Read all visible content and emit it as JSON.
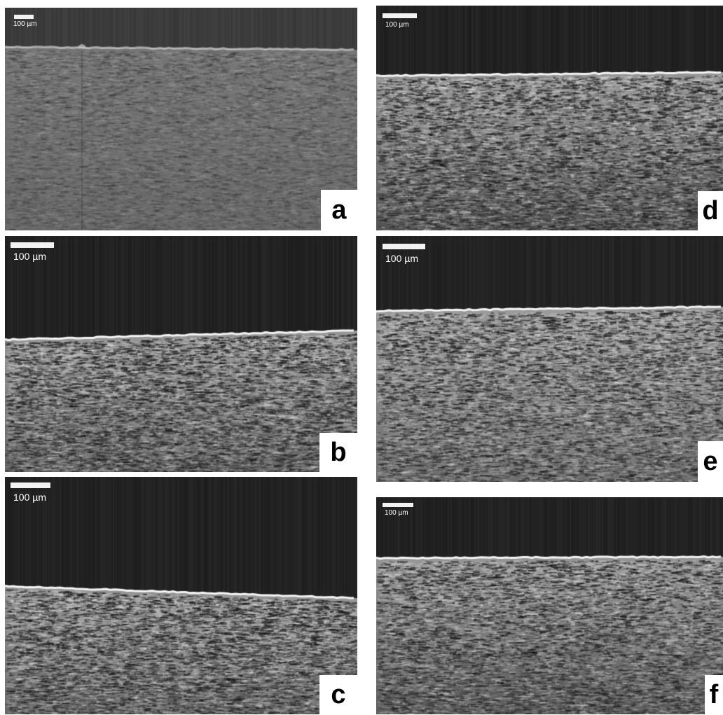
{
  "panels": [
    {
      "id": "a",
      "letter": "a",
      "scale_label": "100 µm"
    },
    {
      "id": "b",
      "letter": "b",
      "scale_label": "100 µm"
    },
    {
      "id": "c",
      "letter": "c",
      "scale_label": "100 µm"
    },
    {
      "id": "d",
      "letter": "d",
      "scale_label": "100 µm"
    },
    {
      "id": "e",
      "letter": "e",
      "scale_label": "100 µm"
    },
    {
      "id": "f",
      "letter": "f",
      "scale_label": "100 µm"
    }
  ]
}
